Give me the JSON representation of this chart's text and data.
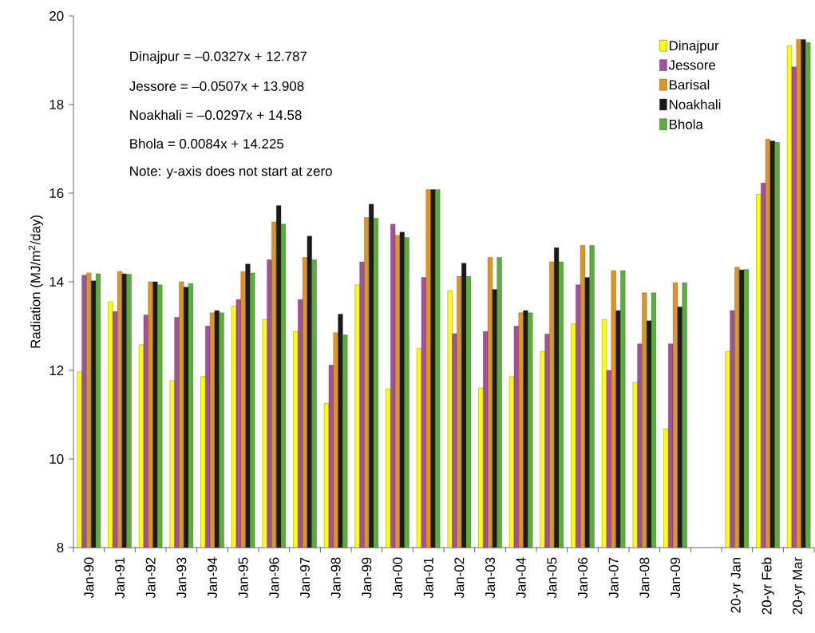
{
  "chart_data": {
    "type": "bar",
    "ylabel": "Radiation (MJ/m$^{2}$/day)",
    "categories": [
      "Jan-90",
      "Jan-91",
      "Jan-92",
      "Jan-93",
      "Jan-94",
      "Jan-95",
      "Jan-96",
      "Jan-97",
      "Jan-98",
      "Jan-99",
      "Jan-00",
      "Jan-01",
      "Jan-02",
      "Jan-03",
      "Jan-04",
      "Jan-05",
      "Jan-06",
      "Jan-07",
      "Jan-08",
      "Jan-09",
      null,
      "20-yr Jan",
      "20-yr Feb",
      "20-yr Mar"
    ],
    "series": [
      {
        "name": "Dinajpur",
        "color": "#ffff00",
        "values": [
          11.97,
          13.55,
          12.58,
          11.77,
          11.86,
          13.45,
          13.15,
          12.88,
          11.25,
          13.93,
          11.58,
          12.5,
          13.8,
          11.6,
          11.86,
          12.43,
          13.05,
          13.15,
          11.73,
          10.68,
          null,
          12.43,
          15.97,
          19.33
        ]
      },
      {
        "name": "Jessore",
        "color": "#a0529a",
        "values": [
          14.15,
          13.33,
          13.25,
          13.2,
          13.0,
          13.6,
          14.5,
          13.6,
          12.12,
          14.45,
          15.3,
          14.1,
          12.83,
          12.88,
          13.0,
          12.82,
          13.93,
          12.0,
          12.6,
          12.6,
          null,
          13.35,
          16.23,
          18.85
        ]
      },
      {
        "name": "Barisal",
        "color": "#e09522",
        "values": [
          14.2,
          14.23,
          14.0,
          14.0,
          13.3,
          14.23,
          15.35,
          14.55,
          12.85,
          15.45,
          15.05,
          16.08,
          14.12,
          14.55,
          13.3,
          14.45,
          14.82,
          14.25,
          13.75,
          13.98,
          null,
          14.33,
          17.22,
          19.47
        ]
      },
      {
        "name": "Noakhali",
        "color": "#1a1a1a",
        "values": [
          14.02,
          14.18,
          14.0,
          13.88,
          13.35,
          14.4,
          15.72,
          15.03,
          13.27,
          15.75,
          15.12,
          16.08,
          14.42,
          13.83,
          13.35,
          14.77,
          14.1,
          13.35,
          13.12,
          13.43,
          null,
          14.27,
          17.18,
          19.47
        ]
      },
      {
        "name": "Bhola",
        "color": "#5aaf3a",
        "values": [
          14.18,
          14.17,
          13.93,
          13.96,
          13.3,
          14.2,
          15.3,
          14.5,
          12.8,
          15.43,
          15.0,
          16.08,
          14.12,
          14.55,
          13.3,
          14.45,
          14.82,
          14.25,
          13.75,
          13.98,
          null,
          14.28,
          17.15,
          19.4
        ]
      }
    ],
    "ylim": [
      8,
      20
    ],
    "yticks": [
      8,
      10,
      12,
      14,
      16,
      18,
      20
    ],
    "grid": false,
    "legend": "top right",
    "annotations": [
      "Dinajpur = –0.0327x + 12.787",
      "Jessore = –0.0507x + 13.908",
      "Noakhali = –0.0297x + 14.58",
      "Bhola = 0.0084x + 14.225",
      "Note: y-axis does not start at zero"
    ]
  }
}
